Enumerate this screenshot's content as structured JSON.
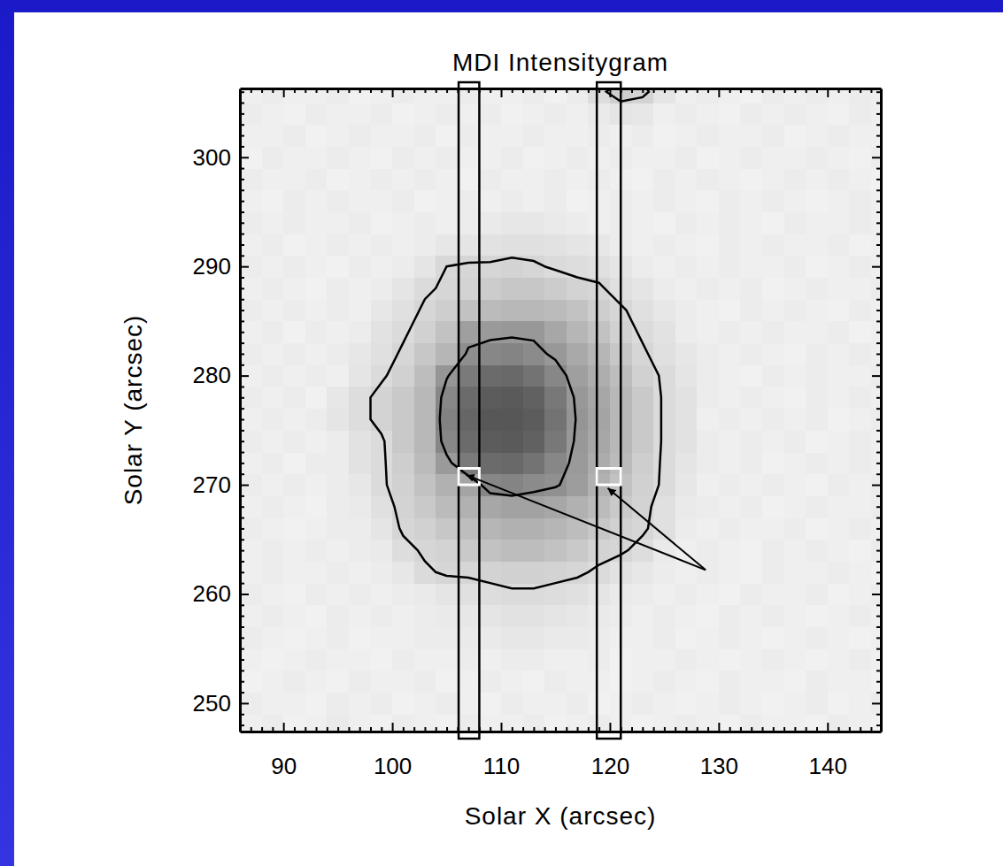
{
  "chart_data": {
    "type": "heatmap",
    "title": "MDI Intensitygram",
    "xlabel": "Solar X (arcsec)",
    "ylabel": "Solar Y (arcsec)",
    "xlim": [
      86.0,
      144.9
    ],
    "ylim": [
      247.4,
      306.3
    ],
    "xticks": [
      90,
      100,
      110,
      120,
      130,
      140
    ],
    "yticks": [
      250,
      260,
      270,
      280,
      290,
      300
    ],
    "xticks_minor": [
      87,
      88,
      89,
      91,
      92,
      93,
      94,
      95,
      96,
      97,
      98,
      99,
      101,
      102,
      103,
      104,
      105,
      106,
      107,
      108,
      109,
      111,
      112,
      113,
      114,
      115,
      116,
      117,
      118,
      119,
      121,
      122,
      123,
      124,
      125,
      126,
      127,
      128,
      129,
      131,
      132,
      133,
      134,
      135,
      136,
      137,
      138,
      139,
      141,
      142,
      143,
      144
    ],
    "yticks_minor": [
      248,
      249,
      251,
      252,
      253,
      254,
      255,
      256,
      257,
      258,
      259,
      261,
      262,
      263,
      264,
      265,
      266,
      267,
      268,
      269,
      271,
      272,
      273,
      274,
      275,
      276,
      277,
      278,
      279,
      281,
      282,
      283,
      284,
      285,
      286,
      287,
      288,
      289,
      291,
      292,
      293,
      294,
      295,
      296,
      297,
      298,
      299,
      301,
      302,
      303,
      304,
      305,
      306
    ],
    "zlim": [
      35,
      100
    ],
    "contours": [
      60,
      88
    ],
    "cells": {
      "x": [
        87,
        89,
        91,
        93,
        95,
        97,
        99,
        101,
        103,
        105,
        107,
        109,
        111,
        113,
        115,
        117,
        119,
        121,
        123,
        125,
        127,
        129,
        131,
        133,
        135,
        137,
        139,
        141,
        143,
        145
      ],
      "y": [
        248,
        250,
        252,
        254,
        256,
        258,
        260,
        262,
        264,
        266,
        268,
        270,
        272,
        274,
        276,
        278,
        280,
        282,
        284,
        286,
        288,
        290,
        292,
        294,
        296,
        298,
        300,
        302,
        304,
        306
      ],
      "values": [
        [
          97,
          96,
          98,
          97,
          95,
          97,
          98,
          96,
          97,
          98,
          96,
          97,
          97,
          96,
          98,
          97,
          96,
          97,
          98,
          97,
          96,
          97,
          98,
          96,
          97,
          97,
          98,
          96,
          97,
          98
        ],
        [
          96,
          97,
          97,
          98,
          96,
          97,
          96,
          98,
          97,
          96,
          97,
          98,
          96,
          97,
          97,
          96,
          98,
          97,
          96,
          97,
          98,
          97,
          96,
          97,
          98,
          97,
          96,
          98,
          97,
          96
        ],
        [
          98,
          97,
          96,
          97,
          98,
          96,
          97,
          97,
          96,
          98,
          97,
          96,
          97,
          98,
          96,
          97,
          97,
          98,
          97,
          96,
          97,
          98,
          96,
          97,
          97,
          98,
          96,
          97,
          97,
          98
        ],
        [
          97,
          98,
          97,
          96,
          97,
          97,
          98,
          96,
          97,
          97,
          96,
          97,
          96,
          96,
          97,
          97,
          96,
          98,
          97,
          97,
          96,
          97,
          98,
          97,
          96,
          97,
          98,
          97,
          96,
          97
        ],
        [
          96,
          97,
          98,
          97,
          96,
          98,
          97,
          97,
          96,
          96,
          95,
          95,
          94,
          94,
          95,
          95,
          96,
          97,
          97,
          96,
          98,
          97,
          96,
          97,
          98,
          97,
          96,
          97,
          98,
          97
        ],
        [
          97,
          96,
          97,
          98,
          96,
          97,
          96,
          97,
          96,
          95,
          94,
          93,
          92,
          92,
          93,
          94,
          95,
          96,
          97,
          96,
          97,
          98,
          96,
          97,
          96,
          97,
          98,
          97,
          96,
          97
        ],
        [
          96,
          97,
          98,
          96,
          97,
          96,
          97,
          96,
          95,
          93,
          91,
          90,
          89,
          89,
          90,
          91,
          93,
          95,
          96,
          97,
          96,
          97,
          98,
          96,
          97,
          97,
          96,
          98,
          97,
          96
        ],
        [
          97,
          96,
          97,
          97,
          96,
          97,
          96,
          94,
          89,
          87,
          87,
          86,
          85,
          85,
          86,
          87,
          89,
          92,
          94,
          96,
          97,
          96,
          97,
          98,
          96,
          97,
          97,
          96,
          97,
          98
        ],
        [
          97,
          96,
          97,
          96,
          97,
          96,
          95,
          90,
          87,
          86,
          82,
          79,
          77,
          77,
          79,
          82,
          86,
          87,
          90,
          95,
          97,
          96,
          97,
          98,
          96,
          97,
          96,
          97,
          98,
          96
        ],
        [
          96,
          97,
          98,
          97,
          96,
          96,
          93,
          87,
          85,
          81,
          77,
          74,
          72,
          72,
          74,
          77,
          81,
          85,
          87,
          91,
          96,
          97,
          96,
          97,
          97,
          96,
          98,
          97,
          96,
          97
        ],
        [
          97,
          96,
          97,
          98,
          96,
          95,
          91,
          86,
          82,
          76,
          72,
          68,
          66,
          66,
          68,
          72,
          76,
          82,
          86,
          91,
          95,
          96,
          97,
          96,
          98,
          97,
          96,
          97,
          97,
          96
        ],
        [
          96,
          97,
          96,
          97,
          96,
          94,
          89,
          85,
          79,
          72,
          67,
          55,
          54,
          57,
          59,
          64,
          72,
          79,
          85,
          89,
          94,
          97,
          96,
          97,
          96,
          97,
          98,
          96,
          97,
          96
        ],
        [
          97,
          96,
          98,
          96,
          96,
          92,
          89,
          84,
          76,
          63,
          50,
          44,
          43,
          47,
          55,
          63,
          70,
          76,
          84,
          89,
          93,
          96,
          97,
          96,
          98,
          97,
          96,
          97,
          96,
          97
        ],
        [
          96,
          97,
          96,
          97,
          96,
          92,
          89,
          82,
          75,
          55,
          44,
          38,
          37,
          40,
          49,
          62,
          68,
          75,
          82,
          89,
          92,
          96,
          97,
          96,
          97,
          96,
          98,
          97,
          96,
          97
        ],
        [
          97,
          96,
          97,
          96,
          93,
          90,
          86,
          82,
          75,
          53,
          42,
          36,
          36,
          38,
          47,
          61,
          67,
          75,
          82,
          89,
          92,
          97,
          96,
          97,
          96,
          97,
          96,
          98,
          97,
          96
        ],
        [
          96,
          97,
          96,
          98,
          94,
          90,
          86,
          82,
          75,
          55,
          44,
          38,
          37,
          40,
          49,
          62,
          68,
          75,
          82,
          89,
          92,
          96,
          97,
          96,
          97,
          98,
          96,
          97,
          96,
          97
        ],
        [
          97,
          96,
          97,
          96,
          97,
          93,
          89,
          85,
          77,
          61,
          50,
          44,
          43,
          47,
          55,
          65,
          71,
          77,
          85,
          89,
          93,
          96,
          97,
          98,
          96,
          97,
          96,
          97,
          97,
          96
        ],
        [
          96,
          97,
          96,
          97,
          96,
          94,
          91,
          87,
          81,
          74,
          58,
          55,
          54,
          57,
          62,
          69,
          74,
          81,
          87,
          91,
          94,
          96,
          97,
          96,
          97,
          98,
          96,
          97,
          96,
          97
        ],
        [
          97,
          96,
          98,
          96,
          97,
          96,
          92,
          89,
          85,
          79,
          65,
          63,
          62,
          62,
          68,
          74,
          79,
          85,
          89,
          92,
          96,
          97,
          96,
          97,
          96,
          97,
          97,
          96,
          98,
          97
        ],
        [
          96,
          97,
          96,
          97,
          96,
          97,
          94,
          91,
          87,
          84,
          79,
          76,
          75,
          75,
          76,
          79,
          84,
          87,
          91,
          94,
          96,
          97,
          98,
          96,
          97,
          96,
          97,
          98,
          96,
          97
        ],
        [
          97,
          96,
          97,
          98,
          96,
          97,
          96,
          93,
          89,
          87,
          86,
          83,
          81,
          81,
          83,
          86,
          87,
          91,
          93,
          96,
          97,
          96,
          97,
          96,
          98,
          97,
          96,
          97,
          97,
          96
        ],
        [
          96,
          97,
          96,
          97,
          98,
          96,
          97,
          96,
          93,
          88,
          87,
          87,
          86,
          87,
          89,
          90,
          91,
          93,
          96,
          97,
          96,
          97,
          96,
          97,
          97,
          96,
          98,
          97,
          96,
          97
        ],
        [
          97,
          96,
          98,
          97,
          96,
          97,
          96,
          97,
          96,
          94,
          93,
          92,
          91,
          91,
          92,
          93,
          94,
          96,
          97,
          96,
          97,
          98,
          96,
          97,
          96,
          97,
          97,
          96,
          98,
          97
        ],
        [
          96,
          97,
          96,
          97,
          97,
          96,
          98,
          97,
          96,
          97,
          96,
          95,
          94,
          94,
          95,
          96,
          97,
          96,
          97,
          98,
          96,
          97,
          96,
          97,
          98,
          96,
          97,
          97,
          96,
          97
        ],
        [
          97,
          98,
          96,
          97,
          96,
          97,
          97,
          96,
          98,
          97,
          96,
          97,
          96,
          97,
          96,
          98,
          97,
          96,
          97,
          96,
          97,
          98,
          96,
          97,
          96,
          97,
          98,
          97,
          96,
          97
        ],
        [
          96,
          97,
          97,
          96,
          98,
          97,
          96,
          97,
          96,
          97,
          98,
          96,
          97,
          97,
          96,
          97,
          96,
          97,
          98,
          96,
          97,
          96,
          97,
          98,
          97,
          96,
          97,
          96,
          97,
          98
        ],
        [
          98,
          96,
          97,
          97,
          96,
          97,
          98,
          96,
          97,
          96,
          97,
          97,
          96,
          98,
          97,
          96,
          97,
          96,
          97,
          97,
          96,
          98,
          97,
          96,
          97,
          97,
          96,
          97,
          98,
          96
        ],
        [
          97,
          97,
          96,
          98,
          97,
          96,
          97,
          97,
          96,
          98,
          96,
          97,
          97,
          96,
          97,
          97,
          96,
          97,
          96,
          98,
          97,
          96,
          97,
          97,
          96,
          98,
          97,
          96,
          97,
          97
        ],
        [
          96,
          97,
          98,
          96,
          97,
          97,
          96,
          98,
          97,
          96,
          97,
          96,
          98,
          97,
          96,
          97,
          95,
          93,
          94,
          97,
          96,
          97,
          98,
          96,
          97,
          96,
          97,
          98,
          96,
          97
        ],
        [
          97,
          96,
          97,
          97,
          96,
          98,
          97,
          96,
          97,
          97,
          96,
          97,
          97,
          96,
          98,
          96,
          90,
          84,
          86,
          93,
          97,
          96,
          97,
          98,
          96,
          97,
          96,
          97,
          96,
          97
        ]
      ]
    },
    "slits": [
      {
        "x0": 106.1,
        "x1": 108.0
      },
      {
        "x0": 118.8,
        "x1": 121.0
      }
    ],
    "boxes": [
      {
        "x0": 106.1,
        "x1": 108.0,
        "y0": 270.0,
        "y1": 271.5
      },
      {
        "x0": 118.8,
        "x1": 121.0,
        "y0": 270.0,
        "y1": 271.5
      }
    ],
    "arrows": [
      {
        "from": [
          128.8,
          262.2
        ],
        "to": [
          106.8,
          270.9
        ]
      },
      {
        "from": [
          128.8,
          262.2
        ],
        "to": [
          119.8,
          269.7
        ]
      }
    ]
  }
}
